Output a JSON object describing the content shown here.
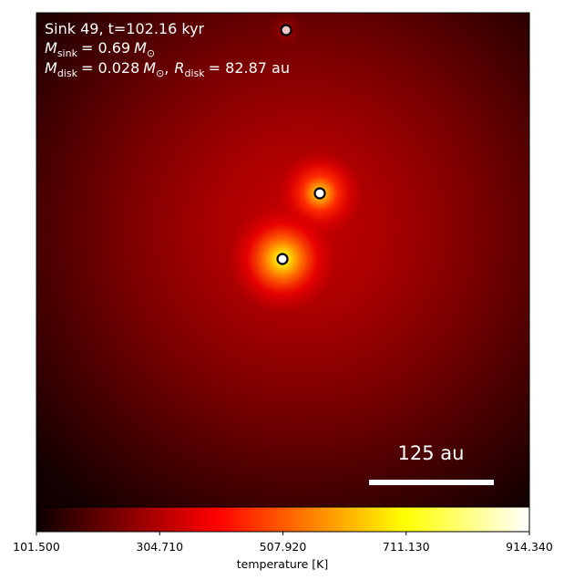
{
  "chart_data": {
    "type": "heatmap",
    "colormap": "hot",
    "annotation": {
      "line1": "Sink 49, t=102.16 kyr",
      "m_sink_symbol": "M",
      "m_sink_sub": "sink",
      "m_sink_value": "= 0.69",
      "m_sink_unit": "M",
      "m_sink_unit_sub": "⊙",
      "m_disk_symbol": "M",
      "m_disk_sub": "disk",
      "m_disk_value": "= 0.028",
      "m_disk_unit": "M",
      "m_disk_unit_sub": "⊙",
      "separator": ",",
      "r_disk_symbol": "R",
      "r_disk_sub": "disk",
      "r_disk_value": "= 82.87 au"
    },
    "scale_bar_label": "125 au",
    "colorbar": {
      "label": "temperature [K]",
      "range": [
        101.5,
        914.34
      ],
      "ticks": [
        "101.500",
        "304.710",
        "507.920",
        "711.130",
        "914.340"
      ]
    },
    "sinks": [
      {
        "name": "sink-top",
        "fill": "#f0c8c8"
      },
      {
        "name": "sink-middle",
        "fill": "#ffffff"
      },
      {
        "name": "sink-center",
        "fill": "#ffffff"
      }
    ]
  }
}
